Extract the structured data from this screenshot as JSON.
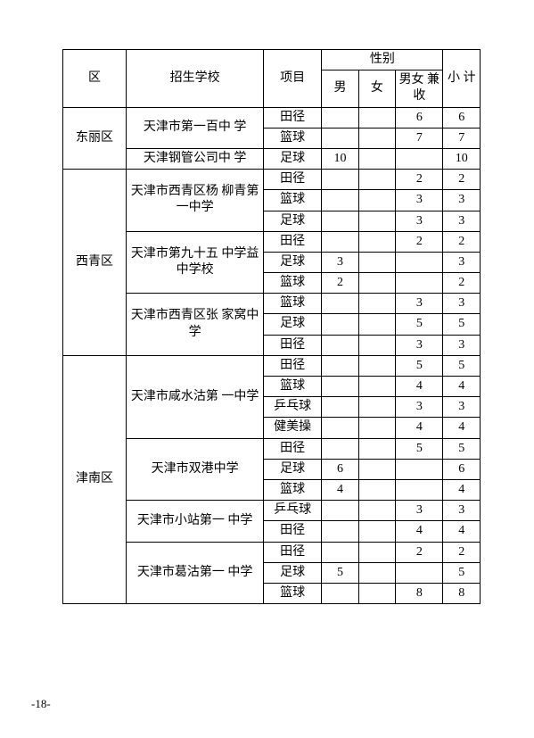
{
  "headers": {
    "district": "区",
    "school": "招生学校",
    "item": "项目",
    "gender": "性别",
    "male": "男",
    "female": "女",
    "both": "男女\n兼收",
    "total": "小\n计"
  },
  "page_number": "-18-",
  "rows": [
    {
      "district": "东丽区",
      "school": "天津市第一百中\n学",
      "item": "田径",
      "m": "",
      "f": "",
      "mf": "6",
      "t": "6"
    },
    {
      "district": "",
      "school": "",
      "item": "篮球",
      "m": "",
      "f": "",
      "mf": "7",
      "t": "7"
    },
    {
      "district": "",
      "school": "天津钢管公司中\n学",
      "item": "足球",
      "m": "10",
      "f": "",
      "mf": "",
      "t": "10"
    },
    {
      "district": "西青区",
      "school": "天津市西青区杨\n柳青第一中学",
      "item": "田径",
      "m": "",
      "f": "",
      "mf": "2",
      "t": "2"
    },
    {
      "district": "",
      "school": "",
      "item": "篮球",
      "m": "",
      "f": "",
      "mf": "3",
      "t": "3"
    },
    {
      "district": "",
      "school": "",
      "item": "足球",
      "m": "",
      "f": "",
      "mf": "3",
      "t": "3"
    },
    {
      "district": "",
      "school": "天津市第九十五\n中学益中学校",
      "item": "田径",
      "m": "",
      "f": "",
      "mf": "2",
      "t": "2"
    },
    {
      "district": "",
      "school": "",
      "item": "足球",
      "m": "3",
      "f": "",
      "mf": "",
      "t": "3"
    },
    {
      "district": "",
      "school": "",
      "item": "篮球",
      "m": "2",
      "f": "",
      "mf": "",
      "t": "2"
    },
    {
      "district": "",
      "school": "天津市西青区张\n家窝中学",
      "item": "篮球",
      "m": "",
      "f": "",
      "mf": "3",
      "t": "3"
    },
    {
      "district": "",
      "school": "",
      "item": "足球",
      "m": "",
      "f": "",
      "mf": "5",
      "t": "5"
    },
    {
      "district": "",
      "school": "",
      "item": "田径",
      "m": "",
      "f": "",
      "mf": "3",
      "t": "3"
    },
    {
      "district": "津南区",
      "school": "天津市咸水沽第\n一中学",
      "item": "田径",
      "m": "",
      "f": "",
      "mf": "5",
      "t": "5"
    },
    {
      "district": "",
      "school": "",
      "item": "篮球",
      "m": "",
      "f": "",
      "mf": "4",
      "t": "4"
    },
    {
      "district": "",
      "school": "",
      "item": "乒乓球",
      "m": "",
      "f": "",
      "mf": "3",
      "t": "3"
    },
    {
      "district": "",
      "school": "",
      "item": "健美操",
      "m": "",
      "f": "",
      "mf": "4",
      "t": "4"
    },
    {
      "district": "",
      "school": "天津市双港中学",
      "item": "田径",
      "m": "",
      "f": "",
      "mf": "5",
      "t": "5"
    },
    {
      "district": "",
      "school": "",
      "item": "足球",
      "m": "6",
      "f": "",
      "mf": "",
      "t": "6"
    },
    {
      "district": "",
      "school": "",
      "item": "篮球",
      "m": "4",
      "f": "",
      "mf": "",
      "t": "4"
    },
    {
      "district": "",
      "school": "天津市小站第一\n中学",
      "item": "乒乓球",
      "m": "",
      "f": "",
      "mf": "3",
      "t": "3"
    },
    {
      "district": "",
      "school": "",
      "item": "田径",
      "m": "",
      "f": "",
      "mf": "4",
      "t": "4"
    },
    {
      "district": "",
      "school": "天津市葛沽第一\n中学",
      "item": "田径",
      "m": "",
      "f": "",
      "mf": "2",
      "t": "2"
    },
    {
      "district": "",
      "school": "",
      "item": "足球",
      "m": "5",
      "f": "",
      "mf": "",
      "t": "5"
    },
    {
      "district": "",
      "school": "",
      "item": "篮球",
      "m": "",
      "f": "",
      "mf": "8",
      "t": "8"
    }
  ],
  "spans": {
    "district": [
      {
        "start": 0,
        "rows": 3
      },
      {
        "start": 3,
        "rows": 9
      },
      {
        "start": 12,
        "rows": 12
      }
    ],
    "school": [
      {
        "start": 0,
        "rows": 2
      },
      {
        "start": 2,
        "rows": 1
      },
      {
        "start": 3,
        "rows": 3
      },
      {
        "start": 6,
        "rows": 3
      },
      {
        "start": 9,
        "rows": 3
      },
      {
        "start": 12,
        "rows": 4
      },
      {
        "start": 16,
        "rows": 3
      },
      {
        "start": 19,
        "rows": 2
      },
      {
        "start": 21,
        "rows": 3
      }
    ]
  }
}
